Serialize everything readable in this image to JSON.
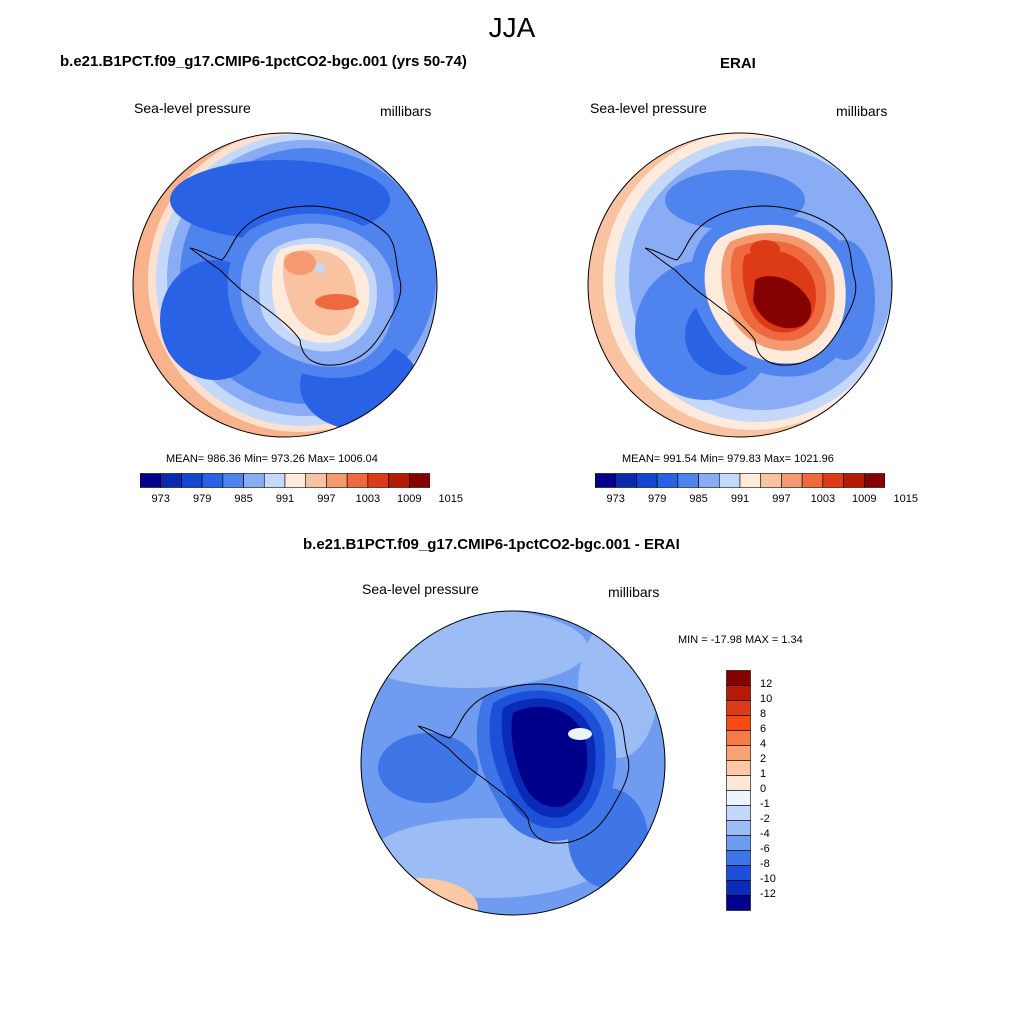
{
  "figure": {
    "title": "JJA"
  },
  "panels": [
    {
      "title": "b.e21.B1PCT.f09_g17.CMIP6-1pctCO2-bgc.001 (yrs 50-74)",
      "left_label": "Sea-level pressure",
      "right_label": "millibars",
      "stats": "MEAN= 986.36  Min= 973.26  Max= 1006.04"
    },
    {
      "title": "ERAI",
      "left_label": "Sea-level pressure",
      "right_label": "millibars",
      "stats": "MEAN= 991.54  Min= 979.83  Max= 1021.96"
    },
    {
      "title": "b.e21.B1PCT.f09_g17.CMIP6-1pctCO2-bgc.001 - ERAI",
      "left_label": "Sea-level pressure",
      "right_label": "millibars",
      "stats": "MIN = -17.98 MAX =   1.34"
    }
  ],
  "colorbars": {
    "field_colors": [
      "#00008b",
      "#0a2aad",
      "#1646d0",
      "#2a62e6",
      "#4f83ee",
      "#89acf4",
      "#c4d8fa",
      "#ffeadb",
      "#f9c3a2",
      "#f59a70",
      "#ee6a3e",
      "#dd3a17",
      "#b51a05",
      "#850000"
    ],
    "field_tick_labels": [
      "973",
      "979",
      "985",
      "991",
      "997",
      "1003",
      "1009",
      "1015"
    ],
    "diff_colors": [
      "#850000",
      "#b51a05",
      "#dd3a17",
      "#f54a14",
      "#f77a46",
      "#f9a274",
      "#fbc9a6",
      "#fde8d8",
      "#eef4fd",
      "#c4d8fa",
      "#9bbcf5",
      "#6f9cf0",
      "#3e76e8",
      "#1c50d8",
      "#0a2ab8",
      "#00008b"
    ],
    "diff_tick_labels": [
      "12",
      "10",
      "8",
      "6",
      "4",
      "2",
      "1",
      "0",
      "-1",
      "-2",
      "-4",
      "-6",
      "-8",
      "-10",
      "-12"
    ]
  },
  "chart_data": [
    {
      "type": "heatmap",
      "title": "b.e21.B1PCT.f09_g17.CMIP6-1pctCO2-bgc.001 (yrs 50-74)",
      "variable": "Sea-level pressure",
      "units": "millibars",
      "projection": "south polar stereographic",
      "levels": [
        973,
        976,
        979,
        982,
        985,
        988,
        991,
        994,
        997,
        1000,
        1003,
        1006,
        1009,
        1012,
        1015
      ],
      "mean": 986.36,
      "min": 973.26,
      "max": 1006.04
    },
    {
      "type": "heatmap",
      "title": "ERAI",
      "variable": "Sea-level pressure",
      "units": "millibars",
      "projection": "south polar stereographic",
      "levels": [
        973,
        976,
        979,
        982,
        985,
        988,
        991,
        994,
        997,
        1000,
        1003,
        1006,
        1009,
        1012,
        1015
      ],
      "mean": 991.54,
      "min": 979.83,
      "max": 1021.96
    },
    {
      "type": "heatmap",
      "title": "b.e21.B1PCT.f09_g17.CMIP6-1pctCO2-bgc.001 - ERAI",
      "variable": "Sea-level pressure",
      "units": "millibars",
      "projection": "south polar stereographic",
      "levels": [
        12,
        10,
        8,
        6,
        4,
        2,
        1,
        0,
        -1,
        -2,
        -4,
        -6,
        -8,
        -10,
        -12
      ],
      "min": -17.98,
      "max": 1.34
    }
  ]
}
